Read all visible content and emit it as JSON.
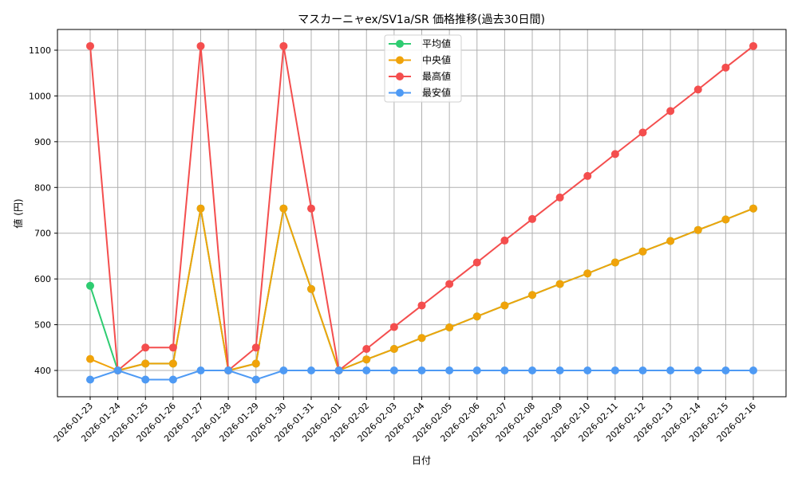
{
  "chart_data": {
    "type": "line",
    "title": "マスカーニャex/SV1a/SR 価格推移(過去30日間)",
    "xlabel": "日付",
    "ylabel": "値 (円)",
    "ylim": [
      345,
      1145
    ],
    "yticks": [
      400,
      500,
      600,
      700,
      800,
      900,
      1000,
      1100
    ],
    "grid": true,
    "legend_position": "upper center",
    "categories": [
      "2026-01-23",
      "2026-01-24",
      "2026-01-25",
      "2026-01-26",
      "2026-01-27",
      "2026-01-28",
      "2026-01-29",
      "2026-01-30",
      "2026-01-31",
      "2026-02-01",
      "2026-02-02",
      "2026-02-03",
      "2026-02-04",
      "2026-02-05",
      "2026-02-06",
      "2026-02-07",
      "2026-02-08",
      "2026-02-09",
      "2026-02-10",
      "2026-02-11",
      "2026-02-12",
      "2026-02-13",
      "2026-02-14",
      "2026-02-15",
      "2026-02-16"
    ],
    "series": [
      {
        "name": "平均値",
        "color": "#2ecc71",
        "values": [
          585,
          400,
          415,
          415,
          754,
          400,
          415,
          754,
          578,
          400,
          424,
          447,
          471,
          494,
          518,
          542,
          565,
          589,
          612,
          636,
          660,
          683,
          707,
          730,
          754
        ]
      },
      {
        "name": "中央値",
        "color": "#f0a30a",
        "values": [
          425,
          400,
          415,
          415,
          754,
          400,
          415,
          754,
          578,
          400,
          424,
          447,
          471,
          494,
          518,
          542,
          565,
          589,
          612,
          636,
          660,
          683,
          707,
          730,
          754
        ]
      },
      {
        "name": "最高値",
        "color": "#f44e4e",
        "values": [
          1109,
          400,
          450,
          450,
          1109,
          400,
          450,
          1109,
          754,
          400,
          447,
          495,
          542,
          589,
          636,
          684,
          731,
          778,
          825,
          873,
          920,
          967,
          1014,
          1062,
          1109
        ]
      },
      {
        "name": "最安値",
        "color": "#4e9af4",
        "values": [
          380,
          400,
          380,
          380,
          400,
          400,
          380,
          400,
          400,
          400,
          400,
          400,
          400,
          400,
          400,
          400,
          400,
          400,
          400,
          400,
          400,
          400,
          400,
          400,
          400
        ]
      }
    ]
  }
}
